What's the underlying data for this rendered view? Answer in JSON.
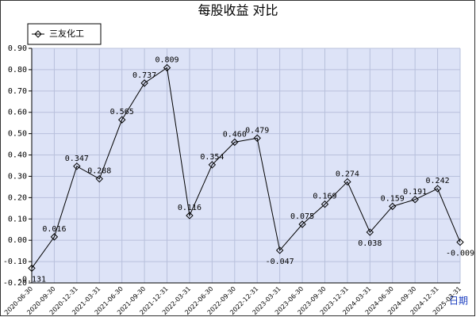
{
  "chart_data": {
    "type": "line",
    "title": "每股收益 对比",
    "x_label": "日期",
    "categories": [
      "2020-06-30",
      "2020-09-30",
      "2020-12-31",
      "2021-03-31",
      "2021-06-30",
      "2021-09-30",
      "2021-12-31",
      "2022-03-31",
      "2022-06-30",
      "2022-09-30",
      "2022-12-31",
      "2023-03-31",
      "2023-06-30",
      "2023-09-30",
      "2023-12-31",
      "2024-03-31",
      "2024-06-30",
      "2024-09-30",
      "2024-12-31",
      "2025-03-31"
    ],
    "series": [
      {
        "name": "三友化工",
        "color": "#000000",
        "values": [
          -0.131,
          0.016,
          0.347,
          0.288,
          0.565,
          0.737,
          0.809,
          0.116,
          0.354,
          0.46,
          0.479,
          -0.047,
          0.075,
          0.169,
          0.274,
          0.038,
          0.159,
          0.191,
          0.242,
          -0.009
        ],
        "value_labels": [
          "-0.131",
          "0.016",
          "0.347",
          "0.288",
          "0.565",
          "0.737",
          "0.809",
          "0.116",
          "0.354",
          "0.460",
          "0.479",
          "-0.047",
          "0.075",
          "0.169",
          "0.274",
          "0.038",
          "0.159",
          "0.191",
          "0.242",
          "-0.009"
        ]
      }
    ],
    "ylim": [
      -0.2,
      0.9
    ],
    "yticks": [
      {
        "value": -0.2,
        "label": "-0.20"
      },
      {
        "value": -0.1,
        "label": "-0.10"
      },
      {
        "value": 0,
        "label": "0.00"
      },
      {
        "value": 0.1,
        "label": "0.10"
      },
      {
        "value": 0.2,
        "label": "0.20"
      },
      {
        "value": 0.3,
        "label": "0.30"
      },
      {
        "value": 0.4,
        "label": "0.40"
      },
      {
        "value": 0.5,
        "label": "0.50"
      },
      {
        "value": 0.6,
        "label": "0.60"
      },
      {
        "value": 0.7,
        "label": "0.70"
      },
      {
        "value": 0.8,
        "label": "0.80"
      },
      {
        "value": 0.9,
        "label": "0.90"
      }
    ],
    "grid": true,
    "legend": "top-left"
  }
}
